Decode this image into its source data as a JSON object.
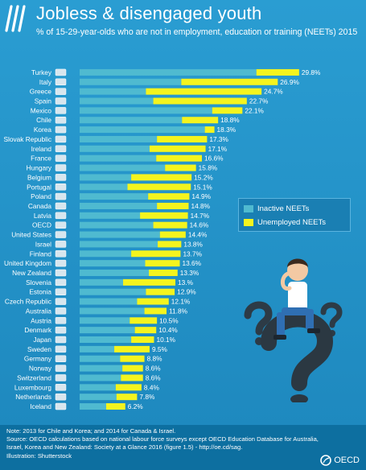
{
  "header": {
    "title": "Jobless & disengaged youth",
    "subtitle": "% of 15-29-year-olds who are not in employment, education or training (NEETs) 2015"
  },
  "legend": {
    "inactive_label": "Inactive NEETs",
    "unemployed_label": "Unemployed NEETs"
  },
  "footer": {
    "note_1": "Note: 2013 for Chile and Korea; and 2014 for Canada & Israel.",
    "note_2": "Source: OECD calculations based on national labour force surveys except OECD Education Database for Australia, Israel, Korea and New Zealand: Society at a Glance 2016 (figure 1.5) - http://oe.cd/sag.",
    "note_3": "Illustration: Shutterstock",
    "brand": "OECD"
  },
  "colors": {
    "inactive": "#4fbad0",
    "unemployed": "#f4f41e",
    "background": "#1f8ec2"
  },
  "chart_data": {
    "type": "bar",
    "orientation": "horizontal",
    "stacked": true,
    "categories": [
      "Turkey",
      "Italy",
      "Greece",
      "Spain",
      "Mexico",
      "Chile",
      "Korea",
      "Slovak Republic",
      "Ireland",
      "France",
      "Hungary",
      "Belgium",
      "Portugal",
      "Poland",
      "Canada",
      "Latvia",
      "OECD",
      "United States",
      "Israel",
      "Finland",
      "United Kingdom",
      "New Zealand",
      "Slovenia",
      "Estonia",
      "Czech Republic",
      "Australia",
      "Austria",
      "Denmark",
      "Japan",
      "Sweden",
      "Germany",
      "Norway",
      "Switzerland",
      "Luxembourg",
      "Netherlands",
      "Iceland"
    ],
    "total_labels": [
      "29.8%",
      "26.9%",
      "24.7%",
      "22.7%",
      "22.1%",
      "18.8%",
      "18.3%",
      "17.3%",
      "17.1%",
      "16.6%",
      "15.8%",
      "15.2%",
      "15.1%",
      "14.9%",
      "14.8%",
      "14.7%",
      "14.6%",
      "14.4%",
      "13.8%",
      "13.7%",
      "13.6%",
      "13.3%",
      "13.%",
      "12.9%",
      "12.1%",
      "11.8%",
      "10.5%",
      "10.4%",
      "10.1%",
      "9.5%",
      "8.8%",
      "8.6%",
      "8.6%",
      "8.4%",
      "7.8%",
      "6.2%"
    ],
    "series": [
      {
        "name": "Inactive NEETs",
        "values": [
          24.0,
          13.8,
          9.0,
          10.0,
          18.0,
          13.9,
          17.0,
          10.5,
          9.5,
          10.4,
          11.6,
          7.0,
          6.5,
          9.3,
          10.5,
          8.2,
          10.0,
          10.9,
          10.6,
          7.0,
          8.9,
          9.4,
          5.9,
          9.0,
          7.8,
          8.8,
          6.8,
          7.5,
          7.0,
          4.7,
          5.5,
          5.8,
          5.6,
          4.9,
          5.0,
          3.6
        ]
      },
      {
        "name": "Unemployed NEETs",
        "values": [
          5.8,
          13.1,
          15.7,
          12.7,
          4.1,
          4.9,
          1.3,
          6.8,
          7.6,
          6.2,
          4.2,
          8.2,
          8.6,
          5.6,
          4.3,
          6.5,
          4.6,
          3.5,
          3.2,
          6.7,
          4.7,
          3.9,
          7.1,
          3.9,
          4.3,
          3.0,
          3.7,
          2.9,
          3.1,
          4.8,
          3.3,
          2.8,
          3.0,
          3.5,
          2.8,
          2.6
        ]
      }
    ],
    "xlim": [
      0,
      32
    ]
  }
}
